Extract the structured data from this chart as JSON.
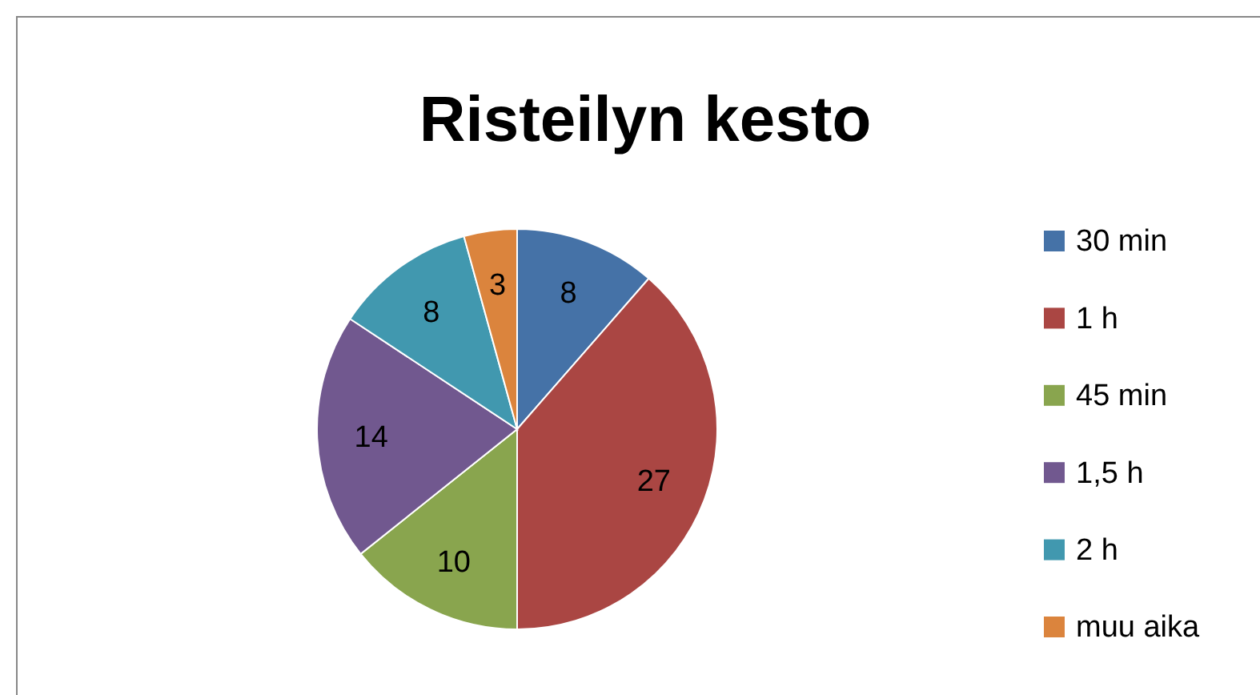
{
  "chart_data": {
    "type": "pie",
    "title": "Risteilyn kesto",
    "categories": [
      "30 min",
      "1 h",
      "45 min",
      "1,5 h",
      "2 h",
      "muu aika"
    ],
    "values": [
      8,
      27,
      10,
      14,
      8,
      3
    ],
    "colors": [
      "#4572a7",
      "#aa4643",
      "#89a54e",
      "#71588f",
      "#4198af",
      "#db843d"
    ],
    "data_labels": true,
    "legend": "right"
  }
}
